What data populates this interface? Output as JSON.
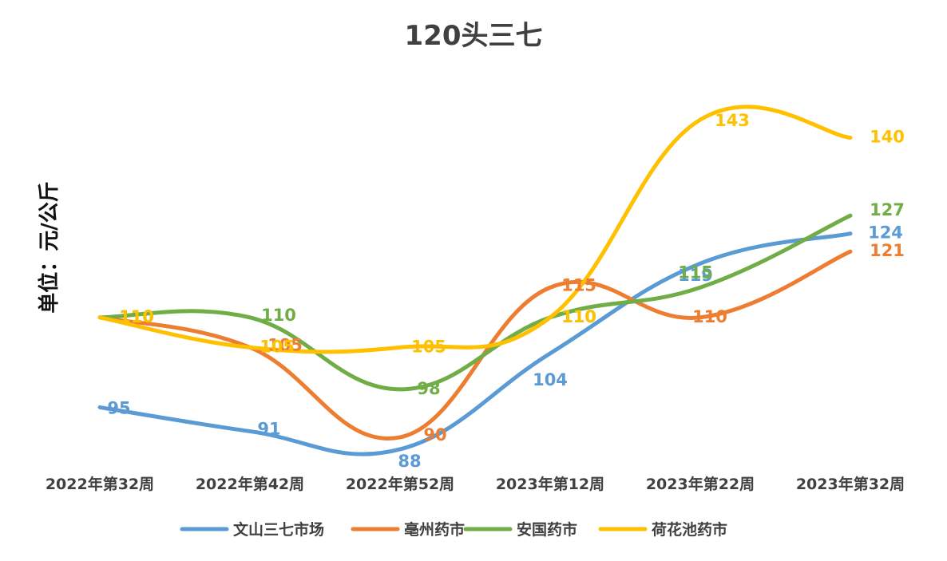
{
  "chart_data": {
    "type": "line",
    "title": "120头三七",
    "ylabel": "单位：元/公斤",
    "xlabel": "",
    "categories": [
      "2022年第32周",
      "2022年第42周",
      "2022年第52周",
      "2023年第12周",
      "2023年第22周",
      "2023年第32周"
    ],
    "ylim": [
      84,
      147
    ],
    "grid": false,
    "legend_position": "bottom",
    "series": [
      {
        "name": "文山三七市场",
        "color": "#5B9BD5",
        "values": [
          95,
          91,
          88,
          104,
          119,
          124
        ]
      },
      {
        "name": "亳州药市",
        "color": "#ED7D31",
        "values": [
          110,
          105,
          90,
          115,
          110,
          121
        ]
      },
      {
        "name": "安国药市",
        "color": "#70AD47",
        "values": [
          110,
          110,
          98,
          110,
          115,
          127
        ]
      },
      {
        "name": "荷花池药市",
        "color": "#FFC000",
        "values": [
          110,
          105,
          105,
          110,
          143,
          140
        ]
      }
    ]
  }
}
